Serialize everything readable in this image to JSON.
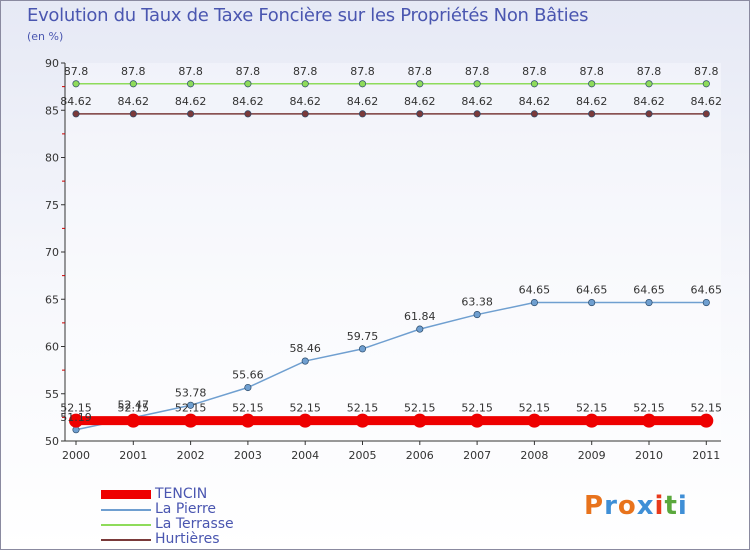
{
  "title": "Evolution du Taux de Taxe Foncière sur les Propriétés Non Bâties",
  "unit": "(en %)",
  "logo": {
    "letters": [
      "P",
      "r",
      "o",
      "x",
      "i",
      "t",
      "i"
    ],
    "colors": [
      "#e8731c",
      "#3f8fd6",
      "#e8731c",
      "#3f8fd6",
      "#e83a1c",
      "#5aa83c",
      "#3f8fd6"
    ]
  },
  "chart_data": {
    "type": "line",
    "x": [
      "2000",
      "2001",
      "2002",
      "2003",
      "2004",
      "2005",
      "2006",
      "2007",
      "2008",
      "2009",
      "2010",
      "2011"
    ],
    "ylim": [
      50,
      90
    ],
    "yticks": [
      "50",
      "55",
      "60",
      "65",
      "70",
      "75",
      "80",
      "85",
      "90"
    ],
    "series": [
      {
        "name": "TENCIN",
        "color": "#ee0000",
        "thick": true,
        "values": [
          52.15,
          52.15,
          52.15,
          52.15,
          52.15,
          52.15,
          52.15,
          52.15,
          52.15,
          52.15,
          52.15,
          52.15
        ],
        "labels": [
          "52.15",
          "52.15",
          "52.15",
          "52.15",
          "52.15",
          "52.15",
          "52.15",
          "52.15",
          "52.15",
          "52.15",
          "52.15",
          "52.15"
        ]
      },
      {
        "name": "La Pierre",
        "color": "#6f9fd0",
        "thick": false,
        "values": [
          51.19,
          52.47,
          53.78,
          55.66,
          58.46,
          59.75,
          61.84,
          63.38,
          64.65,
          64.65,
          64.65,
          64.65
        ],
        "labels": [
          "51.19",
          "52.47",
          "53.78",
          "55.66",
          "58.46",
          "59.75",
          "61.84",
          "63.38",
          "64.65",
          "64.65",
          "64.65",
          "64.65"
        ]
      },
      {
        "name": "La Terrasse",
        "color": "#8edb5a",
        "thick": false,
        "values": [
          87.8,
          87.8,
          87.8,
          87.8,
          87.8,
          87.8,
          87.8,
          87.8,
          87.8,
          87.8,
          87.8,
          87.8
        ],
        "labels": [
          "87.8",
          "87.8",
          "87.8",
          "87.8",
          "87.8",
          "87.8",
          "87.8",
          "87.8",
          "87.8",
          "87.8",
          "87.8",
          "87.8"
        ]
      },
      {
        "name": "Hurtières",
        "color": "#7a3a3a",
        "thick": false,
        "values": [
          84.62,
          84.62,
          84.62,
          84.62,
          84.62,
          84.62,
          84.62,
          84.62,
          84.62,
          84.62,
          84.62,
          84.62
        ],
        "labels": [
          "84.62",
          "84.62",
          "84.62",
          "84.62",
          "84.62",
          "84.62",
          "84.62",
          "84.62",
          "84.62",
          "84.62",
          "84.62",
          "84.62"
        ]
      }
    ]
  }
}
